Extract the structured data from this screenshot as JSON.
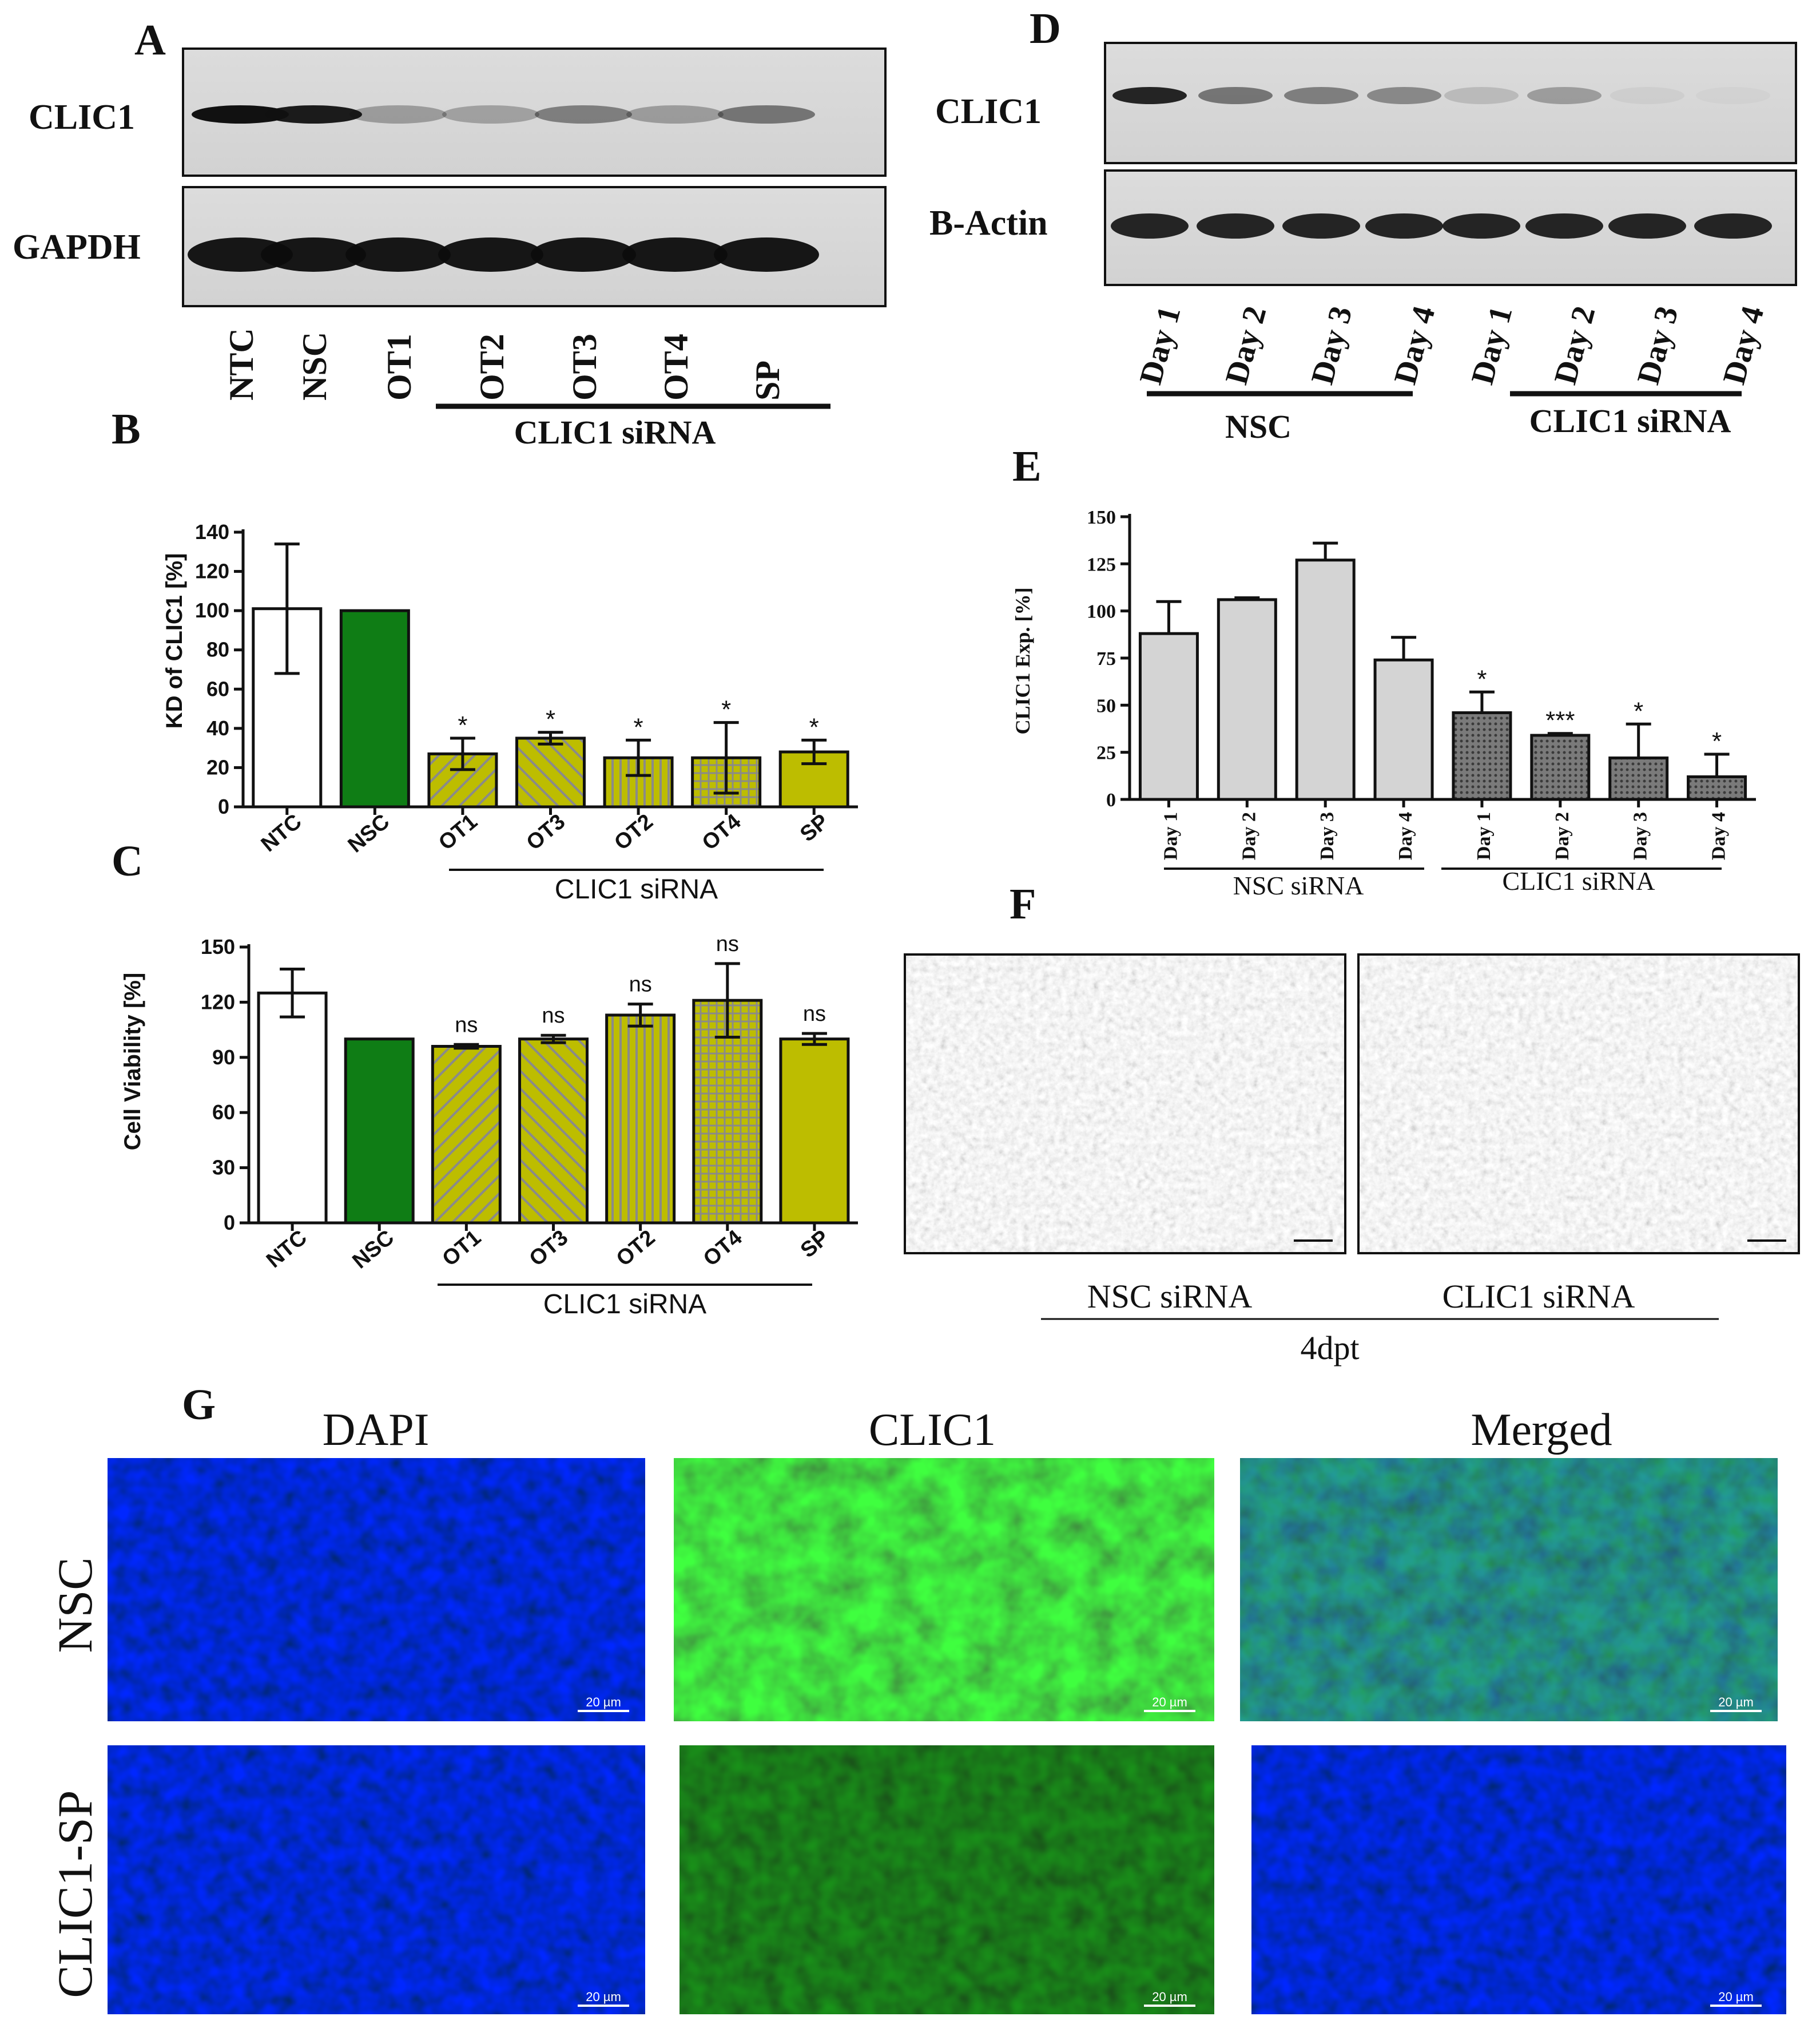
{
  "panel_letters": {
    "a": "A",
    "b": "B",
    "c": "C",
    "d": "D",
    "e": "E",
    "f": "F",
    "g": "G"
  },
  "panel_a": {
    "top_blot_label": "CLIC1",
    "bottom_blot_label": "GAPDH",
    "lanes": [
      "NTC",
      "NSC",
      "OT1",
      "OT2",
      "OT3",
      "OT4",
      "SP"
    ],
    "group_label": "CLIC1 siRNA"
  },
  "panel_d": {
    "top_blot_label": "CLIC1",
    "bottom_blot_label": "B-Actin",
    "lanes": [
      "Day 1",
      "Day 2",
      "Day 3",
      "Day 4",
      "Day 1",
      "Day 2",
      "Day 3",
      "Day 4"
    ],
    "group_left": "NSC",
    "group_right": "CLIC1 siRNA"
  },
  "panel_f": {
    "caption_left": "NSC siRNA",
    "caption_right": "CLIC1 siRNA",
    "caption_bottom": "4dpt"
  },
  "panel_g": {
    "columns": [
      "DAPI",
      "CLIC1",
      "Merged"
    ],
    "rows": [
      "NSC",
      "CLIC1-SP"
    ],
    "scale_bar": "20 µm"
  },
  "colors": {
    "nsc_green": "#0f7d15",
    "olive": "#bdbd00",
    "light_gray_bar": "#d4d4d4",
    "dark_gray_bar": "#6e6e6e",
    "dapi_blue": "#1a24d8",
    "clic1_green": "#2fae2f"
  },
  "chart_data": [
    {
      "panel": "B",
      "type": "bar",
      "ylabel": "KD of CLIC1 [%]",
      "categories": [
        "NTC",
        "NSC",
        "OT1",
        "OT3",
        "OT2",
        "OT4",
        "SP"
      ],
      "values": [
        101,
        100,
        27,
        35,
        25,
        25,
        28
      ],
      "errors": [
        33,
        0,
        8,
        3,
        9,
        18,
        6
      ],
      "significance": [
        "",
        "",
        "*",
        "*",
        "*",
        "*",
        "*"
      ],
      "yticks": [
        0,
        20,
        40,
        60,
        80,
        100,
        120,
        140
      ],
      "ylim": [
        0,
        140
      ],
      "group_label": "CLIC1 siRNA"
    },
    {
      "panel": "C",
      "type": "bar",
      "ylabel": "Cell Viability [%]",
      "categories": [
        "NTC",
        "NSC",
        "OT1",
        "OT3",
        "OT2",
        "OT4",
        "SP"
      ],
      "values": [
        125,
        100,
        96,
        100,
        113,
        121,
        100
      ],
      "errors": [
        13,
        0,
        1,
        2,
        6,
        20,
        3
      ],
      "significance": [
        "",
        "",
        "ns",
        "ns",
        "ns",
        "ns",
        "ns"
      ],
      "yticks": [
        0,
        30,
        60,
        90,
        120,
        150
      ],
      "ylim": [
        0,
        150
      ],
      "group_label": "CLIC1 siRNA"
    },
    {
      "panel": "E",
      "type": "bar",
      "ylabel": "CLIC1 Exp. [%]",
      "categories": [
        "Day 1",
        "Day 2",
        "Day 3",
        "Day 4",
        "Day 1",
        "Day 2",
        "Day 3",
        "Day 4"
      ],
      "values": [
        88,
        106,
        127,
        74,
        46,
        34,
        22,
        12
      ],
      "errors": [
        17,
        1,
        9,
        12,
        11,
        1,
        18,
        12
      ],
      "significance": [
        "",
        "",
        "",
        "",
        "*",
        "***",
        "*",
        "*"
      ],
      "yticks": [
        0,
        25,
        50,
        75,
        100,
        125,
        150
      ],
      "ylim": [
        0,
        150
      ],
      "group_left": "NSC siRNA",
      "group_right": "CLIC1 siRNA"
    }
  ]
}
